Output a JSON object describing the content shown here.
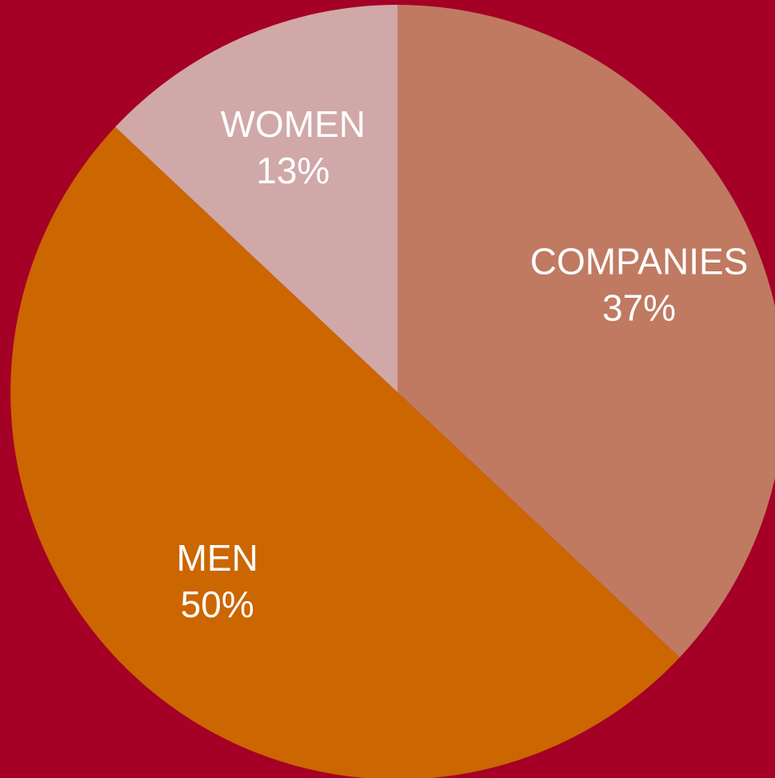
{
  "chart_data": {
    "type": "pie",
    "categories": [
      "COMPANIES",
      "MEN",
      "WOMEN"
    ],
    "values": [
      37,
      50,
      13
    ],
    "value_labels": [
      "37%",
      "50%",
      "13%"
    ],
    "colors": [
      "#c07a62",
      "#cc6600",
      "#d0a8a8"
    ],
    "background": "#a50026"
  }
}
